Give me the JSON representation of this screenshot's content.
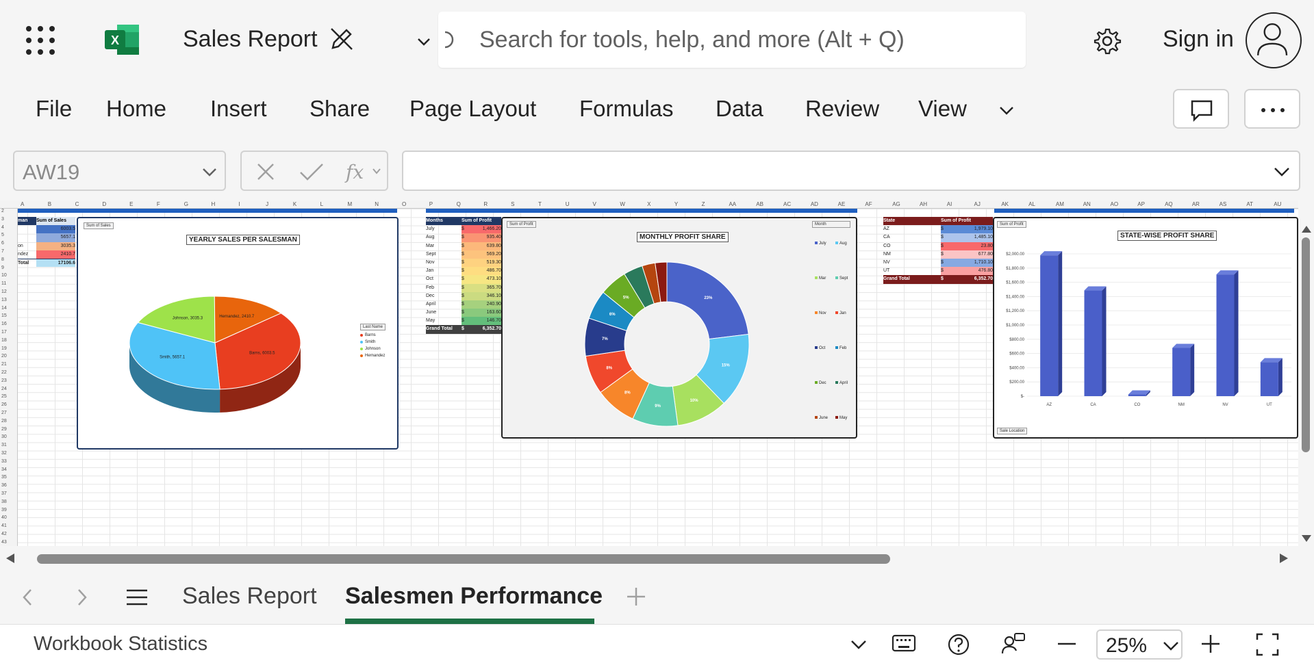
{
  "app": {
    "title": "Sales Report",
    "search_placeholder": "Search for tools, help, and more (Alt + Q)",
    "sign_in": "Sign in"
  },
  "ribbon": {
    "tabs": [
      "File",
      "Home",
      "Insert",
      "Share",
      "Page Layout",
      "Formulas",
      "Data",
      "Review",
      "View"
    ]
  },
  "formula_bar": {
    "name_box": "AW19",
    "formula": ""
  },
  "grid": {
    "columns": [
      "A",
      "B",
      "C",
      "D",
      "E",
      "F",
      "G",
      "H",
      "I",
      "J",
      "K",
      "L",
      "M",
      "N",
      "O",
      "P",
      "Q",
      "R",
      "S",
      "T",
      "U",
      "V",
      "W",
      "X",
      "Y",
      "Z",
      "AA",
      "AB",
      "AC",
      "AD",
      "AE",
      "AF",
      "AG",
      "AH",
      "AI",
      "AJ",
      "AK",
      "AL",
      "AM",
      "AN",
      "AO",
      "AP",
      "AQ",
      "AR",
      "AS",
      "AT",
      "AU"
    ],
    "rows": [
      "2",
      "3",
      "4",
      "5",
      "6",
      "7",
      "8",
      "9",
      "10",
      "11",
      "12",
      "13",
      "14",
      "15",
      "16",
      "17",
      "18",
      "19",
      "20",
      "21",
      "22",
      "23",
      "24",
      "25",
      "26",
      "27",
      "28",
      "29",
      "30",
      "31",
      "32",
      "33",
      "34",
      "35",
      "36",
      "37",
      "38",
      "39",
      "40",
      "41",
      "42",
      "43"
    ]
  },
  "pivot_salesman": {
    "header": [
      "man",
      "Sum of Sales"
    ],
    "rows": [
      {
        "name": "",
        "value": "6003.5",
        "color": "#4472c4"
      },
      {
        "name": "",
        "value": "5657.1",
        "color": "#8faadc"
      },
      {
        "name": "on",
        "value": "3035.3",
        "color": "#f4b183"
      },
      {
        "name": "ndez",
        "value": "2410.7",
        "color": "#f8696b"
      }
    ],
    "total_label": "Total",
    "total_value": "17106.6"
  },
  "pivot_months": {
    "header": [
      "Months",
      "Sum of Profit"
    ],
    "rows": [
      {
        "m": "July",
        "v": "1,466.20",
        "color": "#f8696b"
      },
      {
        "m": "Aug",
        "v": "935.40",
        "color": "#fa9473"
      },
      {
        "m": "Mar",
        "v": "639.80",
        "color": "#fcb87b"
      },
      {
        "m": "Sept",
        "v": "569.20",
        "color": "#fdc37d"
      },
      {
        "m": "Nov",
        "v": "519.30",
        "color": "#fed280"
      },
      {
        "m": "Jan",
        "v": "486.70",
        "color": "#fedd81"
      },
      {
        "m": "Oct",
        "v": "473.10",
        "color": "#f6e683"
      },
      {
        "m": "Feb",
        "v": "365.70",
        "color": "#d9df82"
      },
      {
        "m": "Dec",
        "v": "346.10",
        "color": "#cbdb81"
      },
      {
        "m": "April",
        "v": "240.90",
        "color": "#a6d17e"
      },
      {
        "m": "June",
        "v": "163.60",
        "color": "#8ac97d"
      },
      {
        "m": "May",
        "v": "146.70",
        "color": "#63be7b"
      }
    ],
    "total_label": "Grand Total",
    "total_value": "6,352.70",
    "currency": "$"
  },
  "pivot_state": {
    "header": [
      "State",
      "Sum of Profit"
    ],
    "rows": [
      {
        "s": "AZ",
        "v": "1,979.10",
        "color": "#5a8ad6"
      },
      {
        "s": "CA",
        "v": "1,485.10",
        "color": "#adc4ec"
      },
      {
        "s": "CO",
        "v": "23.80",
        "color": "#f8696b"
      },
      {
        "s": "NM",
        "v": "677.80",
        "color": "#fbc4c5"
      },
      {
        "s": "NV",
        "v": "1,710.10",
        "color": "#86a9e2"
      },
      {
        "s": "UT",
        "v": "476.80",
        "color": "#f9a0a1"
      }
    ],
    "total_label": "Grand Total",
    "total_value": "6,352.70",
    "currency": "$"
  },
  "chart_data": [
    {
      "type": "pie",
      "title": "YEARLY SALES PER SALESMAN",
      "field_button": "Sum of Sales",
      "legend_button": "Last Name",
      "categories": [
        "Barns",
        "Smith",
        "Johnson",
        "Hernandez"
      ],
      "values": [
        6003.5,
        5657.1,
        3035.3,
        2410.7
      ],
      "data_labels": [
        "Barns, 6003.5",
        "Smith, 5657.1",
        "Johnson, 3035.3",
        "Hernandez, 2410.7"
      ],
      "colors": [
        "#e83e20",
        "#4fc3f7",
        "#9ee24a",
        "#e8650c"
      ],
      "legend_position": "right"
    },
    {
      "type": "pie",
      "title": "MONTHLY PROFIT SHARE",
      "field_button": "Sum of Profit",
      "legend_button": "Month",
      "categories": [
        "July",
        "Aug",
        "Mar",
        "Sept",
        "Nov",
        "Jan",
        "Oct",
        "Feb",
        "Dec",
        "April",
        "June",
        "May"
      ],
      "values": [
        1466.2,
        935.4,
        639.8,
        569.2,
        519.3,
        486.7,
        473.1,
        365.7,
        346.1,
        240.9,
        163.6,
        146.7
      ],
      "data_labels": [
        "23%",
        "15%",
        "10%",
        "9%",
        "8%",
        "8%",
        "7%",
        "6%",
        "5%",
        "",
        "",
        ""
      ],
      "colors": [
        "#4a63c9",
        "#5bc8f2",
        "#a8e05f",
        "#5ecdb0",
        "#f7862a",
        "#f0482c",
        "#283c8c",
        "#1b8ac4",
        "#6aab24",
        "#2a7a5c",
        "#b5450f",
        "#8c1a10"
      ],
      "legend_position": "right"
    },
    {
      "type": "bar",
      "title": "STATE-WISE PROFIT SHARE",
      "field_button": "Sum of Profit",
      "axis_button": "Sale Location",
      "categories": [
        "AZ",
        "CA",
        "CO",
        "NM",
        "NV",
        "UT"
      ],
      "values": [
        1979.1,
        1485.1,
        23.8,
        677.8,
        1710.1,
        476.8
      ],
      "yticks": [
        "$-",
        "$200.00",
        "$400.00",
        "$600.00",
        "$800.00",
        "$1,000.00",
        "$1,200.00",
        "$1,400.00",
        "$1,600.00",
        "$1,800.00",
        "$2,000.00"
      ],
      "ylim": [
        0,
        2000
      ],
      "color": "#4a5fc9"
    }
  ],
  "sheets": {
    "tabs": [
      "Sales Report",
      "Salesmen Performance"
    ],
    "active": "Salesmen Performance"
  },
  "status": {
    "workbook_stats": "Workbook Statistics",
    "zoom": "25%"
  }
}
